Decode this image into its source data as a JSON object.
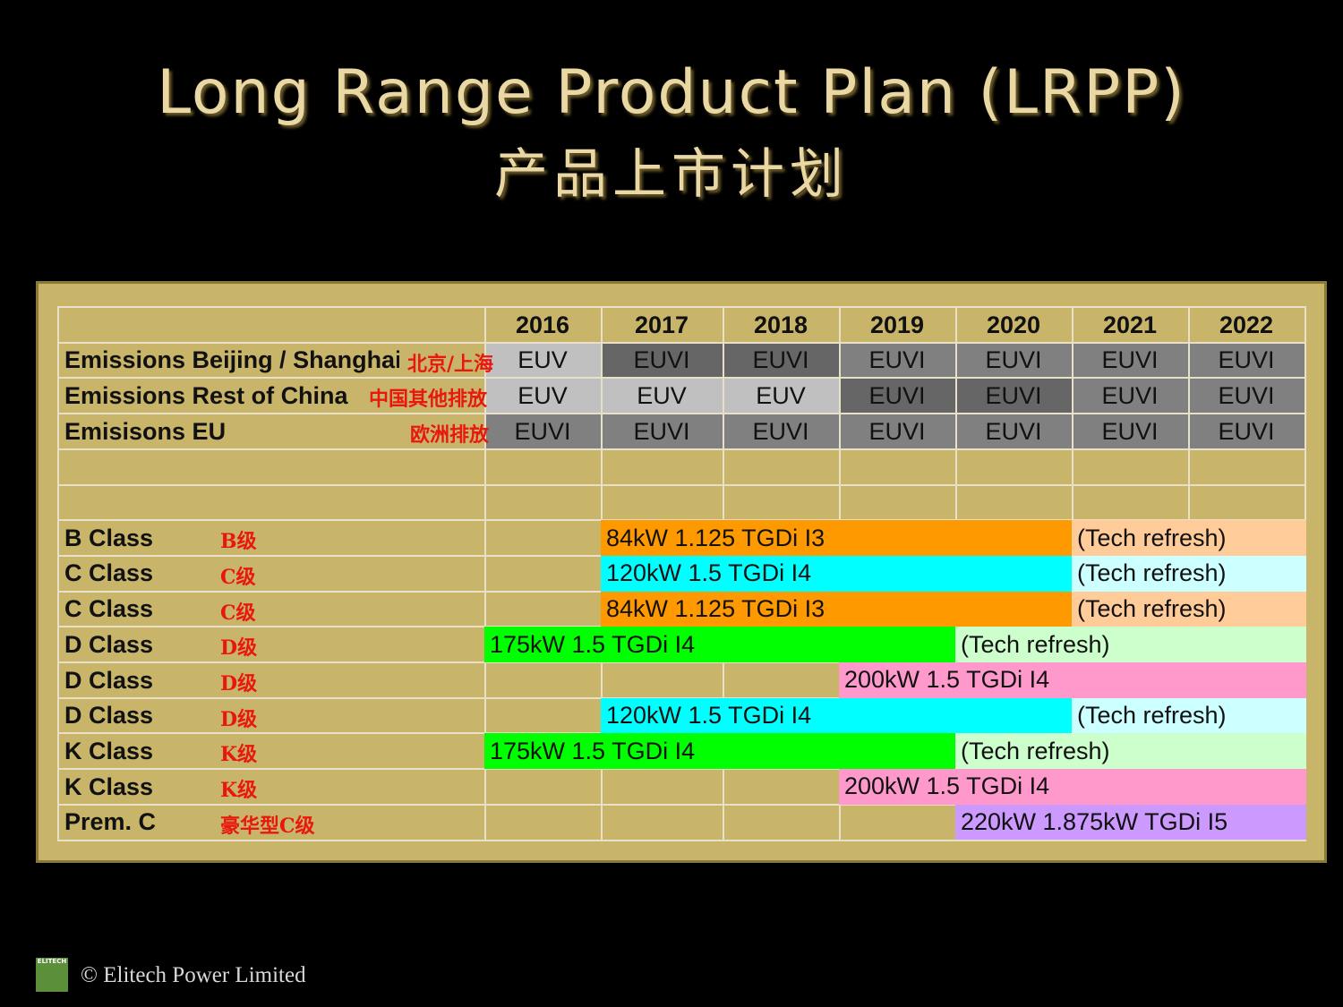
{
  "title": "Long Range Product Plan (LRPP)",
  "title_zh": "产品上市计划",
  "years": [
    "2016",
    "2017",
    "2018",
    "2019",
    "2020",
    "2021",
    "2022"
  ],
  "emissions": [
    {
      "label": "Emissions Beijing / Shanghai",
      "zh": "北京/上海",
      "values": [
        "EUV",
        "EUVI",
        "EUVI",
        "EUVI",
        "EUVI",
        "EUVI",
        "EUVI"
      ]
    },
    {
      "label": "Emissions Rest of China",
      "zh": "中国其他排放",
      "values": [
        "EUV",
        "EUV",
        "EUV",
        "EUVI",
        "EUVI",
        "EUVI",
        "EUVI"
      ]
    },
    {
      "label": "Emisisons EU",
      "zh": "欧洲排放",
      "values": [
        "EUVI",
        "EUVI",
        "EUVI",
        "EUVI",
        "EUVI",
        "EUVI",
        "EUVI"
      ]
    }
  ],
  "classes": [
    {
      "label": "B Class",
      "zh": "B级",
      "bars": [
        {
          "text": "84kW 1.125 TGDi I3",
          "start": 1,
          "end": 5,
          "color": "#ff9900"
        },
        {
          "text": "(Tech refresh)",
          "start": 5,
          "end": 7,
          "color": "#ffcc99"
        }
      ]
    },
    {
      "label": "C Class",
      "zh": "C级",
      "bars": [
        {
          "text": "120kW 1.5 TGDi I4",
          "start": 1,
          "end": 5,
          "color": "#00ffff"
        },
        {
          "text": "(Tech refresh)",
          "start": 5,
          "end": 7,
          "color": "#ccffff"
        }
      ]
    },
    {
      "label": "C Class",
      "zh": "C级",
      "bars": [
        {
          "text": "84kW 1.125 TGDi I3",
          "start": 1,
          "end": 5,
          "color": "#ff9900"
        },
        {
          "text": "(Tech refresh)",
          "start": 5,
          "end": 7,
          "color": "#ffcc99"
        }
      ]
    },
    {
      "label": "D Class",
      "zh": "D级",
      "bars": [
        {
          "text": "175kW 1.5 TGDi I4",
          "start": 0,
          "end": 4,
          "color": "#00ff00"
        },
        {
          "text": "(Tech refresh)",
          "start": 4,
          "end": 7,
          "color": "#ccffcc"
        }
      ]
    },
    {
      "label": "D Class",
      "zh": "D级",
      "bars": [
        {
          "text": "200kW 1.5 TGDi I4",
          "start": 3,
          "end": 7,
          "color": "#ff99cc"
        }
      ]
    },
    {
      "label": "D Class",
      "zh": "D级",
      "bars": [
        {
          "text": "120kW 1.5 TGDi I4",
          "start": 1,
          "end": 5,
          "color": "#00ffff"
        },
        {
          "text": "(Tech refresh)",
          "start": 5,
          "end": 7,
          "color": "#ccffff"
        }
      ]
    },
    {
      "label": "K Class",
      "zh": "K级",
      "bars": [
        {
          "text": "175kW 1.5 TGDi I4",
          "start": 0,
          "end": 4,
          "color": "#00ff00"
        },
        {
          "text": "(Tech refresh)",
          "start": 4,
          "end": 7,
          "color": "#ccffcc"
        }
      ]
    },
    {
      "label": "K Class",
      "zh": "K级",
      "bars": [
        {
          "text": "200kW 1.5 TGDi I4",
          "start": 3,
          "end": 7,
          "color": "#ff99cc"
        }
      ]
    },
    {
      "label": "Prem. C",
      "zh": "豪华型C级",
      "bars": [
        {
          "text": "220kW 1.875kW TGDi I5",
          "start": 4,
          "end": 7,
          "color": "#cc99ff"
        }
      ]
    }
  ],
  "colors": {
    "light_gray": "#c0c0c0",
    "dark_gray": "#808080",
    "darker_gray": "#666666"
  },
  "footer": "© Elitech Power Limited",
  "logo_text": "ELITECH"
}
